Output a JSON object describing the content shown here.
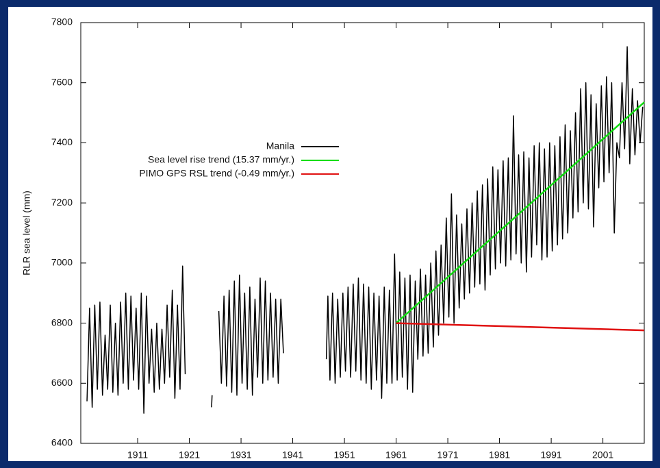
{
  "chart_data": {
    "type": "line",
    "y_label": "RLR sea level (mm)",
    "xlim": [
      1900,
      2009
    ],
    "ylim": [
      6400,
      7800
    ],
    "xticks": [
      1911,
      1921,
      1931,
      1941,
      1951,
      1961,
      1971,
      1981,
      1991,
      2001
    ],
    "yticks": [
      6400,
      6600,
      6800,
      7000,
      7200,
      7400,
      7600,
      7800
    ],
    "legend": "upper center",
    "series": [
      {
        "name": "Manila",
        "color": "#000000",
        "x": [
          1901.2,
          1901.7,
          1902.2,
          1902.7,
          1903.2,
          1903.7,
          1904.2,
          1904.7,
          1905.2,
          1905.7,
          1906.2,
          1906.7,
          1907.2,
          1907.7,
          1908.2,
          1908.7,
          1909.2,
          1909.7,
          1910.2,
          1910.7,
          1911.2,
          1911.7,
          1912.2,
          1912.7,
          1913.2,
          1913.7,
          1914.2,
          1914.7,
          1915.2,
          1915.7,
          1916.2,
          1916.7,
          1917.2,
          1917.7,
          1918.2,
          1918.7,
          1919.2,
          1919.7,
          1920.2,
          1920.7,
          1925.3,
          1925.4,
          1925.8,
          1926.7,
          1927.2,
          1927.7,
          1928.2,
          1928.7,
          1929.2,
          1929.7,
          1930.2,
          1930.7,
          1931.2,
          1931.7,
          1932.2,
          1932.7,
          1933.2,
          1933.7,
          1934.2,
          1934.7,
          1935.2,
          1935.7,
          1936.2,
          1936.7,
          1937.2,
          1937.7,
          1938.2,
          1938.7,
          1939.2,
          1939.7,
          1947.5,
          1947.8,
          1948.2,
          1948.7,
          1949.2,
          1949.7,
          1950.2,
          1950.7,
          1951.2,
          1951.7,
          1952.2,
          1952.7,
          1953.2,
          1953.7,
          1954.2,
          1954.7,
          1955.2,
          1955.7,
          1956.2,
          1956.7,
          1957.2,
          1957.7,
          1958.2,
          1958.7,
          1959.2,
          1959.7,
          1960.2,
          1960.7,
          1961.2,
          1961.7,
          1962.2,
          1962.7,
          1963.2,
          1963.7,
          1964.2,
          1964.7,
          1965.2,
          1965.7,
          1966.2,
          1966.7,
          1967.2,
          1967.7,
          1968.2,
          1968.7,
          1969.2,
          1969.7,
          1970.2,
          1970.7,
          1971.2,
          1971.7,
          1972.2,
          1972.7,
          1973.2,
          1973.7,
          1974.2,
          1974.7,
          1975.2,
          1975.7,
          1976.2,
          1976.7,
          1977.2,
          1977.7,
          1978.2,
          1978.7,
          1979.2,
          1979.7,
          1980.2,
          1980.7,
          1981.2,
          1981.7,
          1982.2,
          1982.7,
          1983.2,
          1983.7,
          1984.2,
          1984.7,
          1985.2,
          1985.7,
          1986.2,
          1986.7,
          1987.2,
          1987.7,
          1988.2,
          1988.7,
          1989.2,
          1989.7,
          1990.2,
          1990.7,
          1991.2,
          1991.7,
          1992.2,
          1992.7,
          1993.2,
          1993.7,
          1994.2,
          1994.7,
          1995.2,
          1995.7,
          1996.2,
          1996.7,
          1997.2,
          1997.7,
          1998.2,
          1998.7,
          1999.2,
          1999.7,
          2000.2,
          2000.7,
          2001.2,
          2001.7,
          2002.2,
          2002.7,
          2003.2,
          2003.7,
          2004.2,
          2004.7,
          2005.2,
          2005.7,
          2006.2,
          2006.7,
          2007.2,
          2007.7,
          2008.2,
          2008.7
        ],
        "values": [
          6540,
          6850,
          6520,
          6860,
          6580,
          6870,
          6560,
          6760,
          6580,
          6860,
          6570,
          6800,
          6560,
          6870,
          6600,
          6900,
          6580,
          6890,
          6610,
          6850,
          6580,
          6900,
          6500,
          6890,
          6600,
          6780,
          6570,
          6800,
          6580,
          6780,
          6600,
          6860,
          6620,
          6910,
          6550,
          6860,
          6580,
          6990,
          6630,
          null,
          6520,
          6560,
          null,
          6840,
          6600,
          6890,
          6590,
          6910,
          6570,
          6940,
          6560,
          6960,
          6600,
          6900,
          6580,
          6920,
          6560,
          6880,
          6620,
          6950,
          6600,
          6940,
          6610,
          6900,
          6620,
          6880,
          6600,
          6880,
          6700,
          null,
          6680,
          6890,
          6610,
          6900,
          6600,
          6880,
          6620,
          6900,
          6640,
          6920,
          6620,
          6930,
          6640,
          6950,
          6610,
          6930,
          6600,
          6920,
          6580,
          6900,
          6610,
          6890,
          6550,
          6920,
          6600,
          6910,
          6600,
          7030,
          6610,
          6970,
          6620,
          6950,
          6580,
          6960,
          6570,
          6940,
          6680,
          6980,
          6690,
          6960,
          6700,
          7000,
          6720,
          7040,
          6760,
          7060,
          6800,
          7150,
          6820,
          7230,
          6800,
          7160,
          6850,
          7130,
          6880,
          7180,
          6900,
          7200,
          6920,
          7240,
          6930,
          7260,
          6910,
          7280,
          6960,
          7320,
          6980,
          7310,
          7000,
          7340,
          6990,
          7350,
          7010,
          7490,
          7030,
          7360,
          7000,
          7370,
          6970,
          7350,
          7020,
          7390,
          7060,
          7400,
          7010,
          7380,
          7020,
          7400,
          7040,
          7390,
          7060,
          7420,
          7080,
          7460,
          7100,
          7440,
          7150,
          7500,
          7170,
          7580,
          7200,
          7600,
          7180,
          7560,
          7120,
          7530,
          7250,
          7590,
          7270,
          7620,
          7300,
          7600,
          7100,
          7400,
          7350,
          7600,
          7380,
          7720,
          7330,
          7580,
          7360,
          7540,
          7400,
          7520
        ]
      },
      {
        "name": "Sea level rise trend (15.37 mm/yr.)",
        "color": "#11dd11",
        "x": [
          1961,
          2009
        ],
        "values": [
          6800,
          7535
        ]
      },
      {
        "name": "PIMO GPS RSL trend (-0.49 mm/yr.)",
        "color": "#e01010",
        "x": [
          1961,
          2009
        ],
        "values": [
          6800,
          6776
        ]
      }
    ]
  }
}
